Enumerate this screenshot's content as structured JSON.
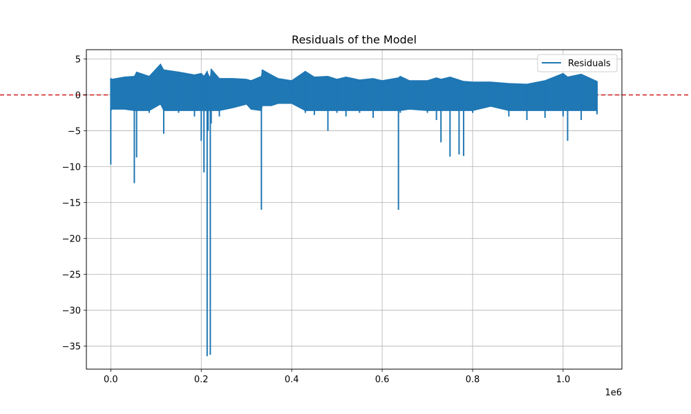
{
  "chart_data": {
    "type": "line",
    "title": "Residuals of the Model",
    "xlabel": "",
    "ylabel": "",
    "x_offset_label": "1e6",
    "xlim": [
      -0.054,
      1.13
    ],
    "ylim": [
      -38.2,
      6.3
    ],
    "xticks": [
      0.0,
      0.2,
      0.4,
      0.6,
      0.8,
      1.0
    ],
    "xtick_labels": [
      "0.0",
      "0.2",
      "0.4",
      "0.6",
      "0.8",
      "1.0"
    ],
    "yticks": [
      5,
      0,
      -5,
      -10,
      -15,
      -20,
      -25,
      -30,
      -35
    ],
    "ytick_labels": [
      "5",
      "0",
      "−5",
      "−10",
      "−15",
      "−20",
      "−25",
      "−30",
      "−35"
    ],
    "grid": true,
    "legend_position": "top-right",
    "reference_line": {
      "y": 0,
      "style": "dashed",
      "color": "#d62728"
    },
    "series": [
      {
        "name": "Residuals",
        "color": "#1f77b4",
        "x": [
          0.0,
          0.003,
          0.03,
          0.052,
          0.057,
          0.085,
          0.11,
          0.117,
          0.15,
          0.185,
          0.2,
          0.206,
          0.213,
          0.215,
          0.22,
          0.222,
          0.24,
          0.27,
          0.3,
          0.31,
          0.333,
          0.335,
          0.355,
          0.37,
          0.4,
          0.43,
          0.45,
          0.48,
          0.5,
          0.52,
          0.55,
          0.58,
          0.6,
          0.636,
          0.64,
          0.66,
          0.7,
          0.72,
          0.73,
          0.75,
          0.77,
          0.78,
          0.8,
          0.84,
          0.88,
          0.92,
          0.96,
          1.0,
          1.01,
          1.04,
          1.075
        ],
        "upper": [
          2.3,
          2.2,
          2.5,
          2.6,
          3.2,
          2.6,
          4.3,
          3.5,
          3.2,
          2.8,
          3.0,
          2.6,
          3.3,
          2.9,
          2.4,
          3.6,
          2.3,
          2.3,
          2.2,
          2.0,
          2.6,
          3.5,
          2.8,
          2.3,
          2.0,
          3.3,
          2.5,
          2.6,
          2.2,
          2.5,
          2.1,
          2.3,
          2.0,
          2.4,
          2.6,
          2.0,
          2.0,
          2.4,
          2.2,
          2.5,
          2.1,
          1.9,
          1.8,
          1.8,
          1.6,
          1.5,
          2.0,
          3.0,
          2.5,
          2.9,
          1.9
        ],
        "lower": [
          -9.7,
          -2.0,
          -2.0,
          -12.3,
          -8.7,
          -2.5,
          -1.3,
          -5.4,
          -2.5,
          -3.0,
          -6.4,
          -10.8,
          -36.4,
          -5.0,
          -36.2,
          -4.0,
          -3.0,
          -1.8,
          -1.3,
          -2.0,
          -16.0,
          -1.5,
          -1.5,
          -1.2,
          -1.2,
          -2.5,
          -2.8,
          -5.0,
          -2.5,
          -3.0,
          -2.5,
          -3.2,
          -2.2,
          -16.0,
          -2.5,
          -2.0,
          -2.5,
          -3.5,
          -6.6,
          -8.6,
          -8.3,
          -8.5,
          -2.5,
          -1.6,
          -3.0,
          -3.5,
          -3.2,
          -3.0,
          -6.4,
          -3.5,
          -2.7
        ]
      }
    ]
  }
}
